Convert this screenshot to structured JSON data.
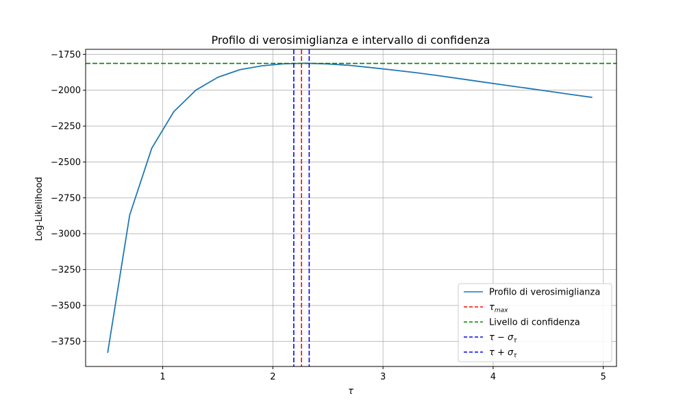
{
  "chart_data": {
    "type": "line",
    "title": "Profilo di verosimiglianza e intervallo di confidenza",
    "xlabel": "τ",
    "ylabel": "Log-Likelihood",
    "xlim": [
      0.3,
      5.12
    ],
    "ylim": [
      -3925,
      -1715
    ],
    "grid": true,
    "legend_position": "lower-right",
    "x_ticks": [
      1,
      2,
      3,
      4,
      5
    ],
    "y_ticks": [
      -1750,
      -2000,
      -2250,
      -2500,
      -2750,
      -3000,
      -3250,
      -3500,
      -3750
    ],
    "x_tick_labels": [
      "1",
      "2",
      "3",
      "4",
      "5"
    ],
    "y_tick_labels": [
      "−1750",
      "−2000",
      "−2250",
      "−2500",
      "−2750",
      "−3000",
      "−3250",
      "−3500",
      "−3750"
    ],
    "series": [
      {
        "name": "Profilo di verosimiglianza",
        "color": "#1f77b4",
        "style": "solid",
        "x": [
          0.5,
          0.7,
          0.9,
          1.1,
          1.3,
          1.5,
          1.7,
          1.9,
          2.1,
          2.3,
          2.5,
          2.7,
          2.9,
          3.1,
          3.3,
          3.5,
          3.7,
          3.9,
          4.1,
          4.3,
          4.5,
          4.7,
          4.9
        ],
        "y": [
          -3830,
          -2870,
          -2405,
          -2150,
          -2000,
          -1910,
          -1857,
          -1830,
          -1816,
          -1812,
          -1817,
          -1827,
          -1843,
          -1860,
          -1878,
          -1898,
          -1920,
          -1942,
          -1964,
          -1985,
          -2007,
          -2029,
          -2050
        ]
      }
    ],
    "reference_lines": [
      {
        "name_base": "τ",
        "name_sub": "max",
        "orientation": "vertical",
        "value": 2.26,
        "color": "#ff0000",
        "style": "dashed"
      },
      {
        "name": "Livello di confidenza",
        "orientation": "horizontal",
        "value": -1813,
        "color": "#008000",
        "style": "dashed"
      },
      {
        "name_base": "τ − σ",
        "name_sub": "τ",
        "orientation": "vertical",
        "value": 2.19,
        "color": "#0000ff",
        "style": "dashed"
      },
      {
        "name_base": "τ + σ",
        "name_sub": "τ",
        "orientation": "vertical",
        "value": 2.33,
        "color": "#0000ff",
        "style": "dashed"
      }
    ]
  }
}
